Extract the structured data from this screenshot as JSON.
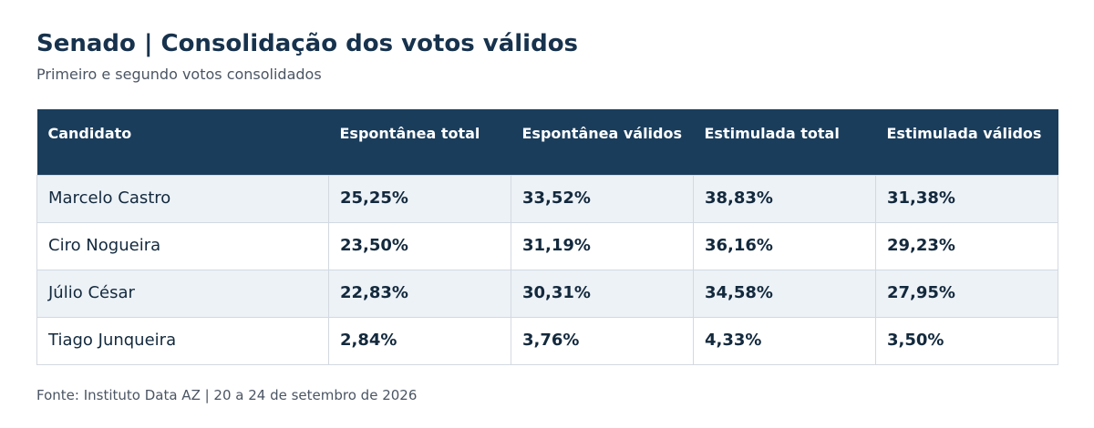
{
  "title": "Senado | Consolidação dos votos válidos",
  "subtitle": "Primeiro e segundo votos consolidados",
  "table": {
    "columns": [
      "Candidato",
      "Espontânea total",
      "Espontânea válidos",
      "Estimulada total",
      "Estimulada válidos"
    ],
    "rows": [
      {
        "candidate": "Marcelo Castro",
        "values": [
          "25,25%",
          "33,52%",
          "38,83%",
          "31,38%"
        ]
      },
      {
        "candidate": "Ciro Nogueira",
        "values": [
          "23,50%",
          "31,19%",
          "36,16%",
          "29,23%"
        ]
      },
      {
        "candidate": "Júlio César",
        "values": [
          "22,83%",
          "30,31%",
          "34,58%",
          "27,95%"
        ]
      },
      {
        "candidate": "Tiago Junqueira",
        "values": [
          "2,84%",
          "3,76%",
          "4,33%",
          "3,50%"
        ]
      }
    ]
  },
  "source": "Fonte: Instituto Data AZ | 20 a 24 de setembro de 2026",
  "colors": {
    "header_bg": "#1a3d5c",
    "title": "#17324d",
    "row_alt_bg": "#edf2f7",
    "border": "#d3d9e0",
    "muted_text": "#4b5563"
  }
}
